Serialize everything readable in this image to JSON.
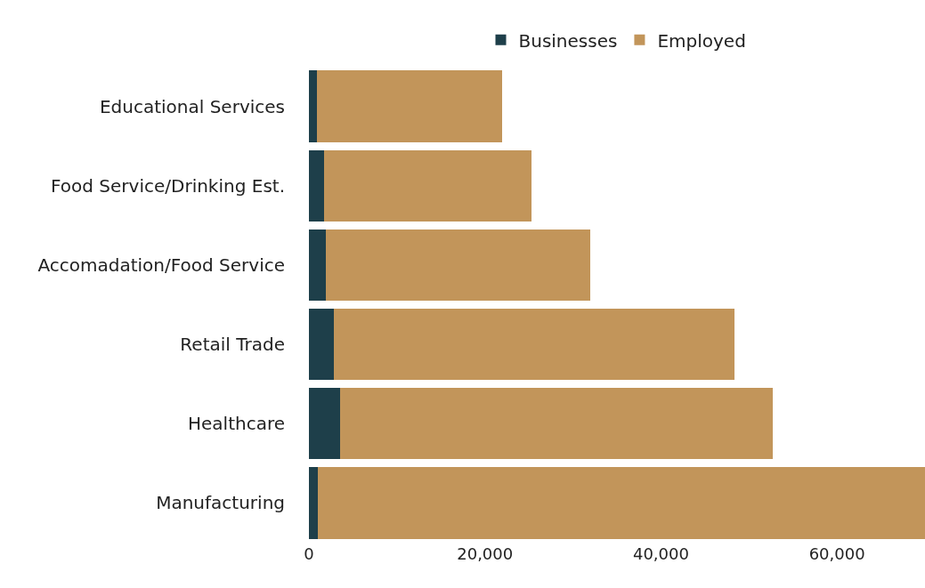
{
  "chart_data": {
    "type": "bar",
    "orientation": "horizontal",
    "stacked": true,
    "categories": [
      "Educational Services",
      "Food Service/Drinking Est.",
      "Accomadation/Food Service",
      "Retail Trade",
      "Healthcare",
      "Manufacturing"
    ],
    "series": [
      {
        "name": "Businesses",
        "color": "#1e3f4a",
        "values": [
          900,
          1700,
          1900,
          2800,
          3500,
          1000
        ]
      },
      {
        "name": "Employed",
        "color": "#c2955a",
        "values": [
          21000,
          23600,
          30100,
          45600,
          49200,
          69000
        ]
      }
    ],
    "xlim": [
      0,
      70000
    ],
    "xticks": [
      0,
      {
        "value": 20000,
        "label": "20,000"
      },
      {
        "value": 40000,
        "label": "40,000"
      },
      {
        "value": 60000,
        "label": "60,000"
      }
    ],
    "legend": "top"
  }
}
